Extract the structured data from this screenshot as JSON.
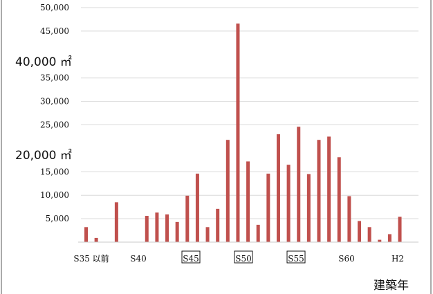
{
  "chart_data": {
    "type": "bar",
    "xlabel": "建築年",
    "ylim": [
      0,
      50000
    ],
    "y_ticks": [
      "50,000",
      "45,000",
      "35,000",
      "30,000",
      "25,000",
      "15,000",
      "10,000",
      "5,000"
    ],
    "annotations": [
      "40,000 ㎡",
      "20,000 ㎡"
    ],
    "x_tick_labels": [
      {
        "text": "S35 以前",
        "boxed": false
      },
      {
        "text": "S40",
        "boxed": false
      },
      {
        "text": "S45",
        "boxed": true
      },
      {
        "text": "S50",
        "boxed": true
      },
      {
        "text": "S55",
        "boxed": true
      },
      {
        "text": "S60",
        "boxed": false
      },
      {
        "text": "H2",
        "boxed": false
      }
    ],
    "grid": true,
    "bar_color": "#c0504d",
    "values": [
      3200,
      900,
      0,
      8500,
      0,
      0,
      5600,
      6300,
      5900,
      4300,
      9900,
      14600,
      3200,
      7100,
      21800,
      46600,
      17200,
      3700,
      14600,
      23000,
      16500,
      24600,
      14500,
      21800,
      22500,
      18100,
      9800,
      4500,
      3200,
      500,
      1700,
      5400
    ]
  }
}
